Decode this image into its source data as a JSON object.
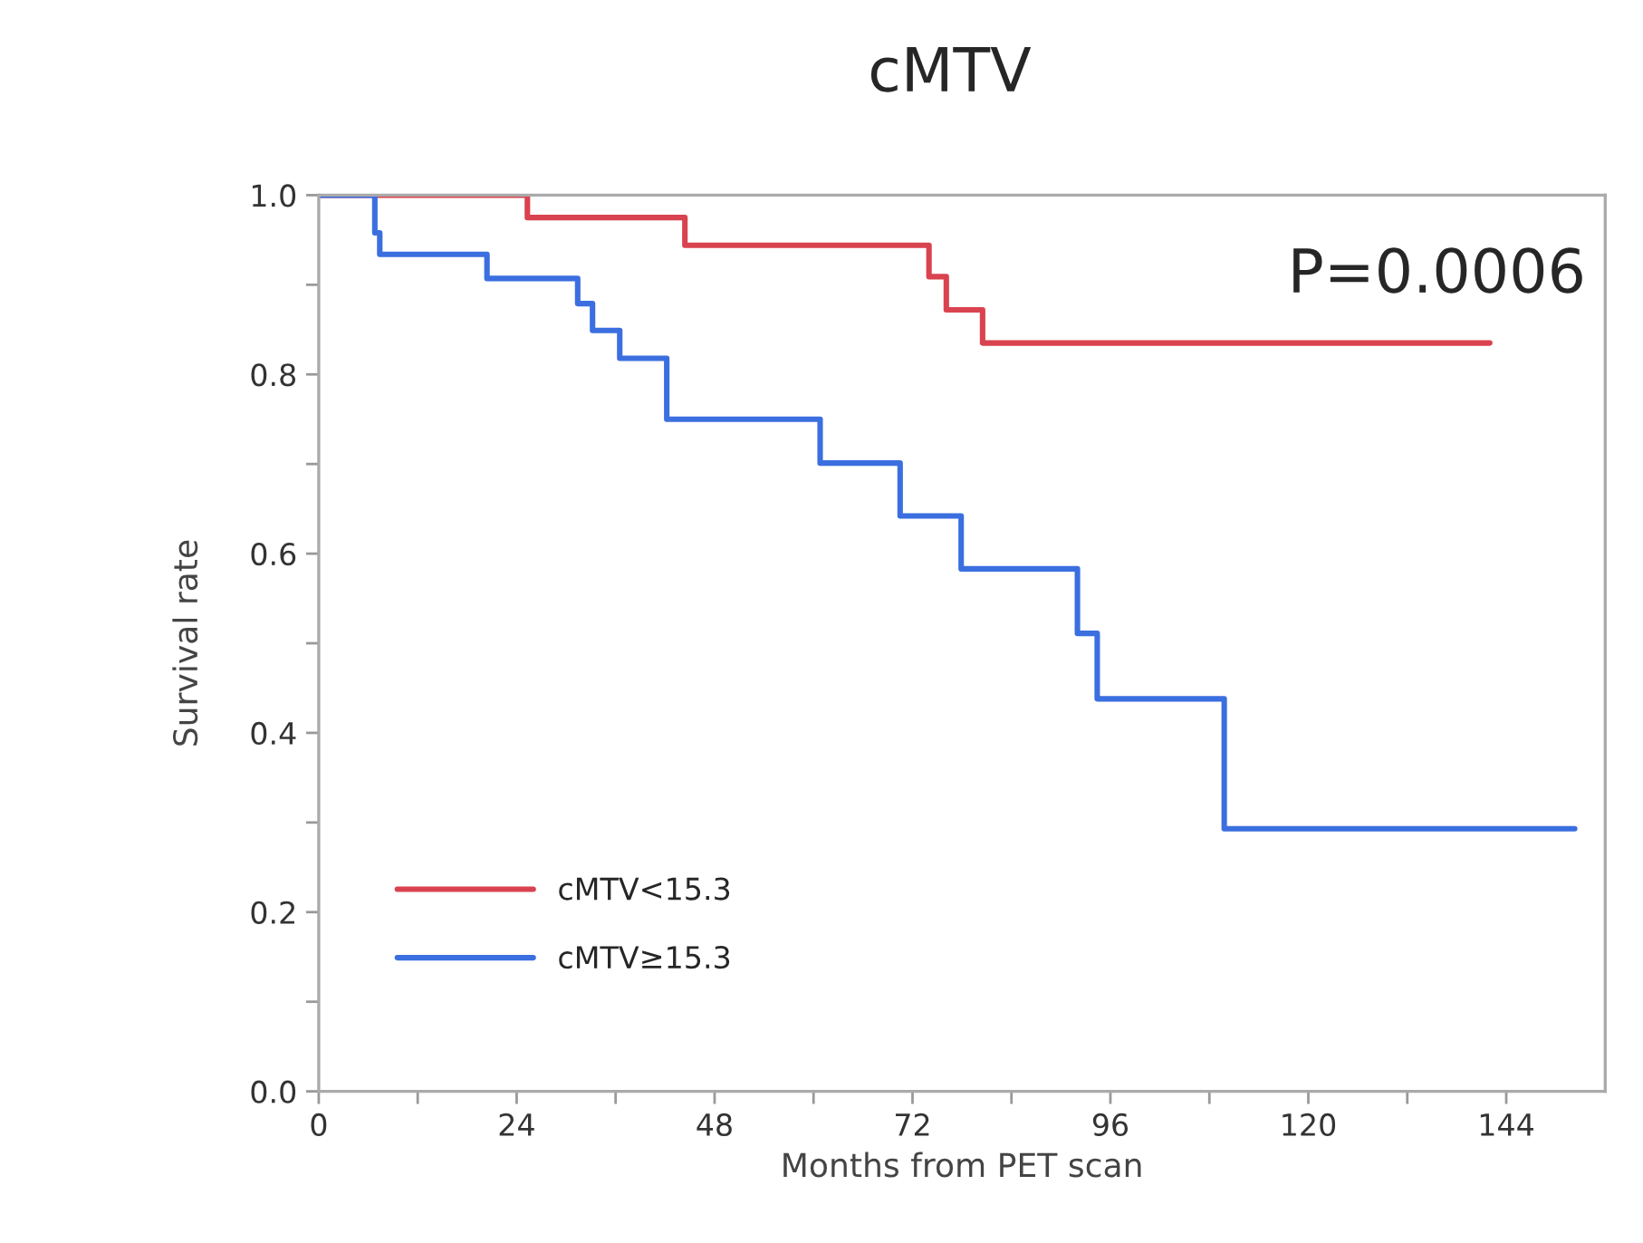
{
  "chart_data": {
    "type": "step",
    "title": "cMTV",
    "xlabel": "Months from PET scan",
    "ylabel": "Survival rate",
    "annotations": [
      "P=0.0006"
    ],
    "series": [
      {
        "name": "cMTV<15.3",
        "color": "#d9434f",
        "x": [
          0,
          25.3,
          44.4,
          74,
          76.1,
          80.5,
          142
        ],
        "values": [
          1,
          0.975,
          0.944,
          0.909,
          0.872,
          0.835,
          0.835
        ]
      },
      {
        "name": "cMTV≥15.3",
        "color": "#3b6fe0",
        "x": [
          0,
          6.8,
          7.4,
          20.4,
          31.4,
          33.2,
          36.5,
          42.2,
          60.8,
          70.5,
          77.9,
          92,
          94.4,
          109.8,
          152.3
        ],
        "values": [
          1,
          0.958,
          0.934,
          0.907,
          0.879,
          0.849,
          0.818,
          0.75,
          0.701,
          0.642,
          0.583,
          0.511,
          0.438,
          0.293,
          0.293
        ]
      }
    ],
    "xlim": [
      0,
      156
    ],
    "ylim": [
      0,
      1
    ],
    "xticks": [
      0,
      {
        "value": 12,
        "label": null
      },
      24,
      {
        "value": 36,
        "label": null
      },
      48,
      {
        "value": 60,
        "label": null
      },
      72,
      {
        "value": 84,
        "label": null
      },
      96,
      {
        "value": 108,
        "label": null
      },
      120,
      {
        "value": 132,
        "label": null
      },
      144
    ],
    "yticks": [
      {
        "value": 0,
        "label": "0.0"
      },
      {
        "value": 0.1,
        "label": null
      },
      {
        "value": 0.2,
        "label": "0.2"
      },
      {
        "value": 0.3,
        "label": null
      },
      {
        "value": 0.4,
        "label": "0.4"
      },
      {
        "value": 0.5,
        "label": null
      },
      {
        "value": 0.6,
        "label": "0.6"
      },
      {
        "value": 0.7,
        "label": null
      },
      {
        "value": 0.8,
        "label": "0.8"
      },
      {
        "value": 0.9,
        "label": null
      },
      {
        "value": 1,
        "label": "1.0"
      }
    ],
    "grid": false,
    "legend": "bottom left",
    "line_style": "solid",
    "marker": "none"
  }
}
